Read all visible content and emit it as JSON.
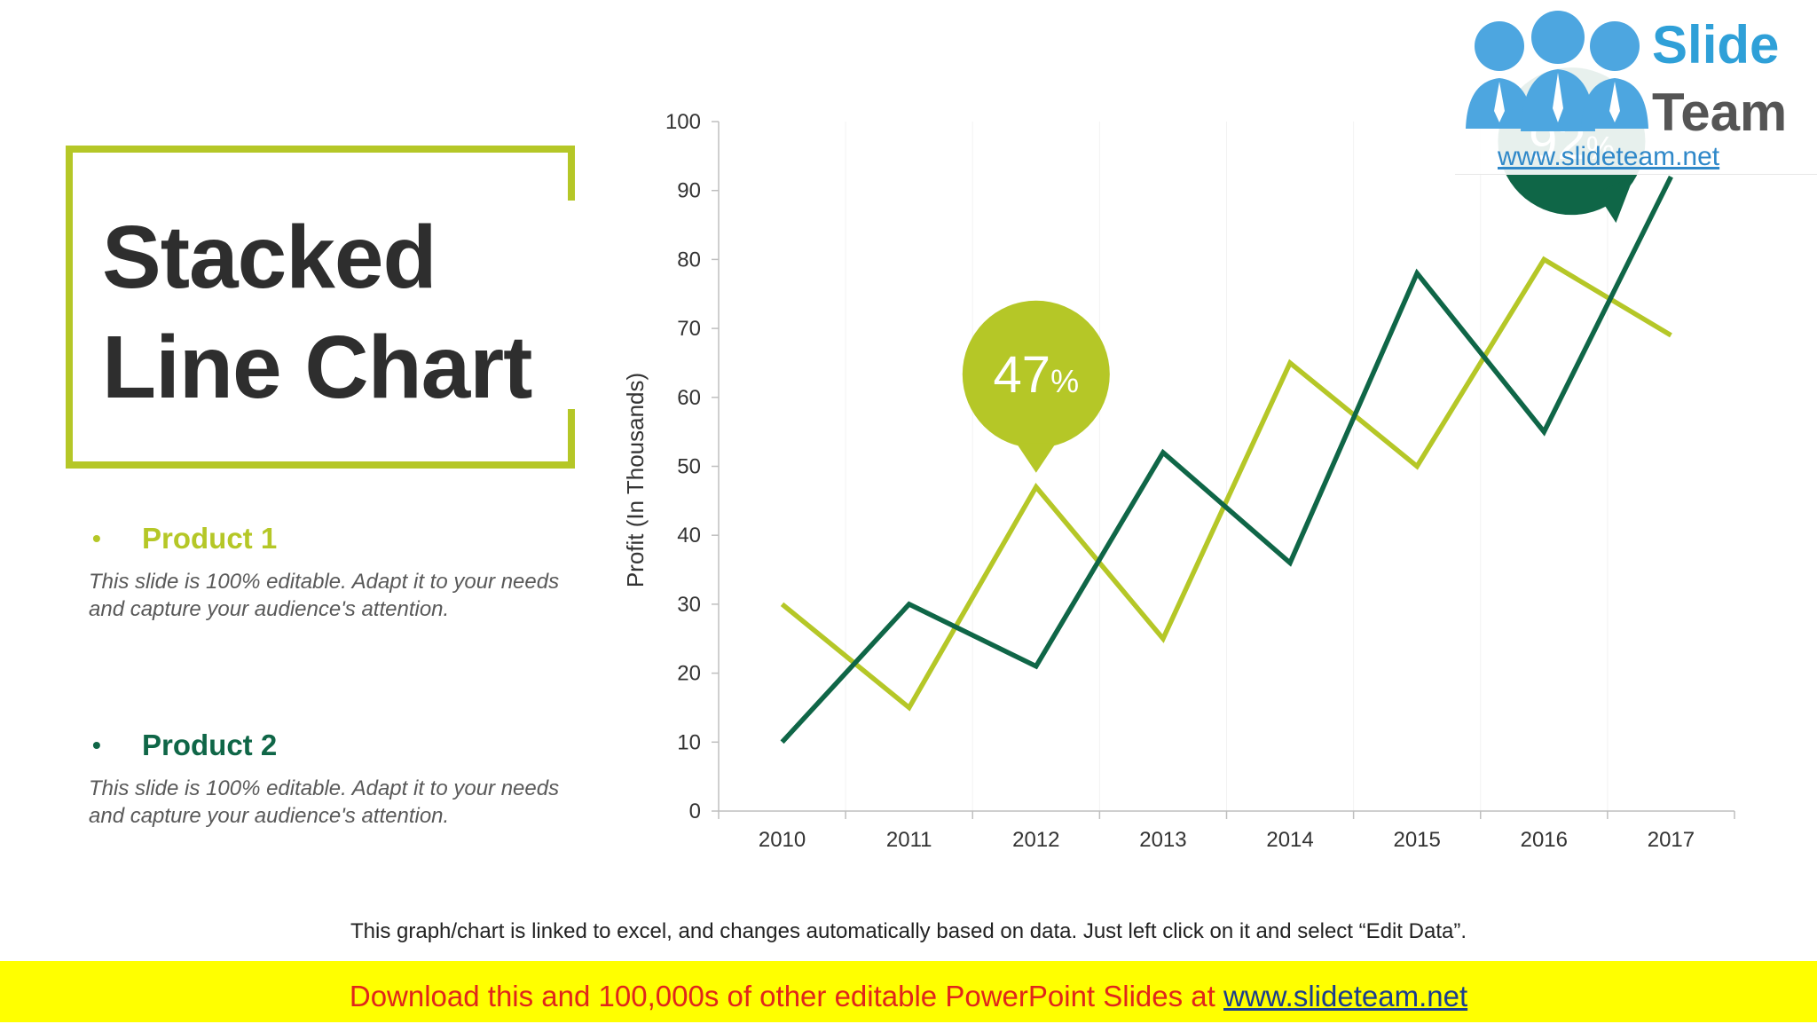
{
  "slide": {
    "title_line1": "Stacked",
    "title_line2": "Line Chart",
    "bullet": "•",
    "products": [
      {
        "name": "Product 1",
        "description": "This slide is 100% editable. Adapt it to your needs and capture your audience's attention.",
        "color": "#b5c727"
      },
      {
        "name": "Product 2",
        "description": "This slide is 100% editable. Adapt it to your needs and capture your audience's attention.",
        "color": "#0f6647"
      }
    ],
    "note": "This graph/chart is linked to excel, and changes automatically based on data. Just left click on it and select “Edit Data”.",
    "banner_text": "Download this and 100,000s of other editable PowerPoint Slides at ",
    "banner_link": "www.slideteam.net"
  },
  "logo": {
    "word1": "Slide",
    "word2": "Team",
    "url": "www.slideteam.net"
  },
  "colors": {
    "accent_light": "#b5c727",
    "accent_dark": "#0f6647",
    "banner": "#ffff00",
    "banner_text": "#e0261b"
  },
  "chart_data": {
    "type": "line",
    "categories": [
      "2010",
      "2011",
      "2012",
      "2013",
      "2014",
      "2015",
      "2016",
      "2017"
    ],
    "series": [
      {
        "name": "Product 1",
        "values": [
          30,
          15,
          47,
          25,
          65,
          50,
          80,
          69
        ],
        "color": "#b5c727"
      },
      {
        "name": "Product 2",
        "values": [
          10,
          30,
          21,
          52,
          36,
          78,
          55,
          92
        ],
        "color": "#0f6647"
      }
    ],
    "ylabel": "Profit (In Thousands)",
    "xlabel": "",
    "ylim": [
      0,
      100
    ],
    "yticks": [
      0,
      10,
      20,
      30,
      40,
      50,
      60,
      70,
      80,
      90,
      100
    ],
    "grid": "vertical",
    "annotations": [
      {
        "series": 0,
        "category": "2012",
        "value": "47",
        "unit": "%"
      },
      {
        "series": 1,
        "category": "2017",
        "value": "92",
        "unit": "%"
      }
    ]
  }
}
